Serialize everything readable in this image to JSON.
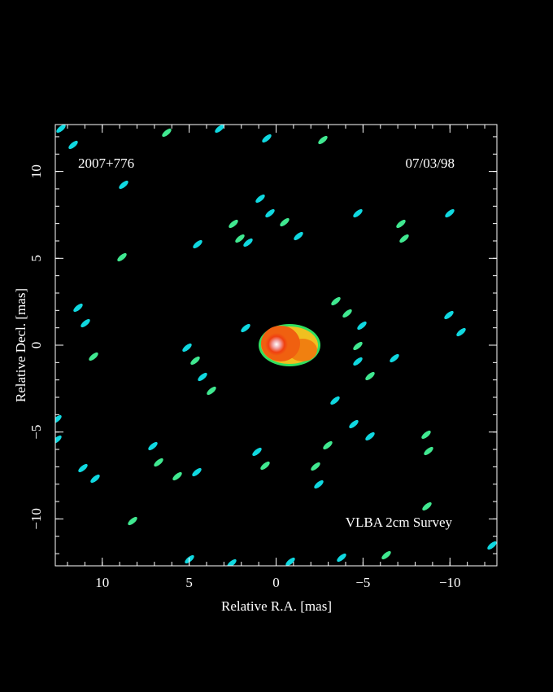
{
  "chart_data": {
    "type": "image",
    "source_label": "2007+776",
    "date_label": "07/03/98",
    "survey_label": "VLBA 2cm Survey",
    "x_label": "Relative R.A. [mas]",
    "y_label": "Relative Decl. [mas]",
    "xlim": [
      12.7,
      -12.7
    ],
    "ylim": [
      -12.7,
      12.7
    ],
    "xticks": [
      10,
      5,
      0,
      {
        "value": -5,
        "label": "−5"
      },
      {
        "value": -10,
        "label": "−10"
      }
    ],
    "yticks": [
      {
        "value": -10,
        "label": "−10"
      },
      {
        "value": -5,
        "label": "−5"
      },
      0,
      5,
      10
    ],
    "xminorticks": [
      12,
      11,
      10,
      9,
      8,
      7,
      6,
      5,
      4,
      3,
      2,
      1,
      0,
      -1,
      -2,
      -3,
      -4,
      -5,
      -6,
      -7,
      -8,
      -9,
      -10,
      -11,
      -12
    ],
    "yminorticks": [
      -12,
      -11,
      -10,
      -9,
      -8,
      -7,
      -6,
      -5,
      -4,
      -3,
      -2,
      -1,
      0,
      1,
      2,
      3,
      4,
      5,
      6,
      7,
      8,
      9,
      10,
      11,
      12
    ]
  }
}
